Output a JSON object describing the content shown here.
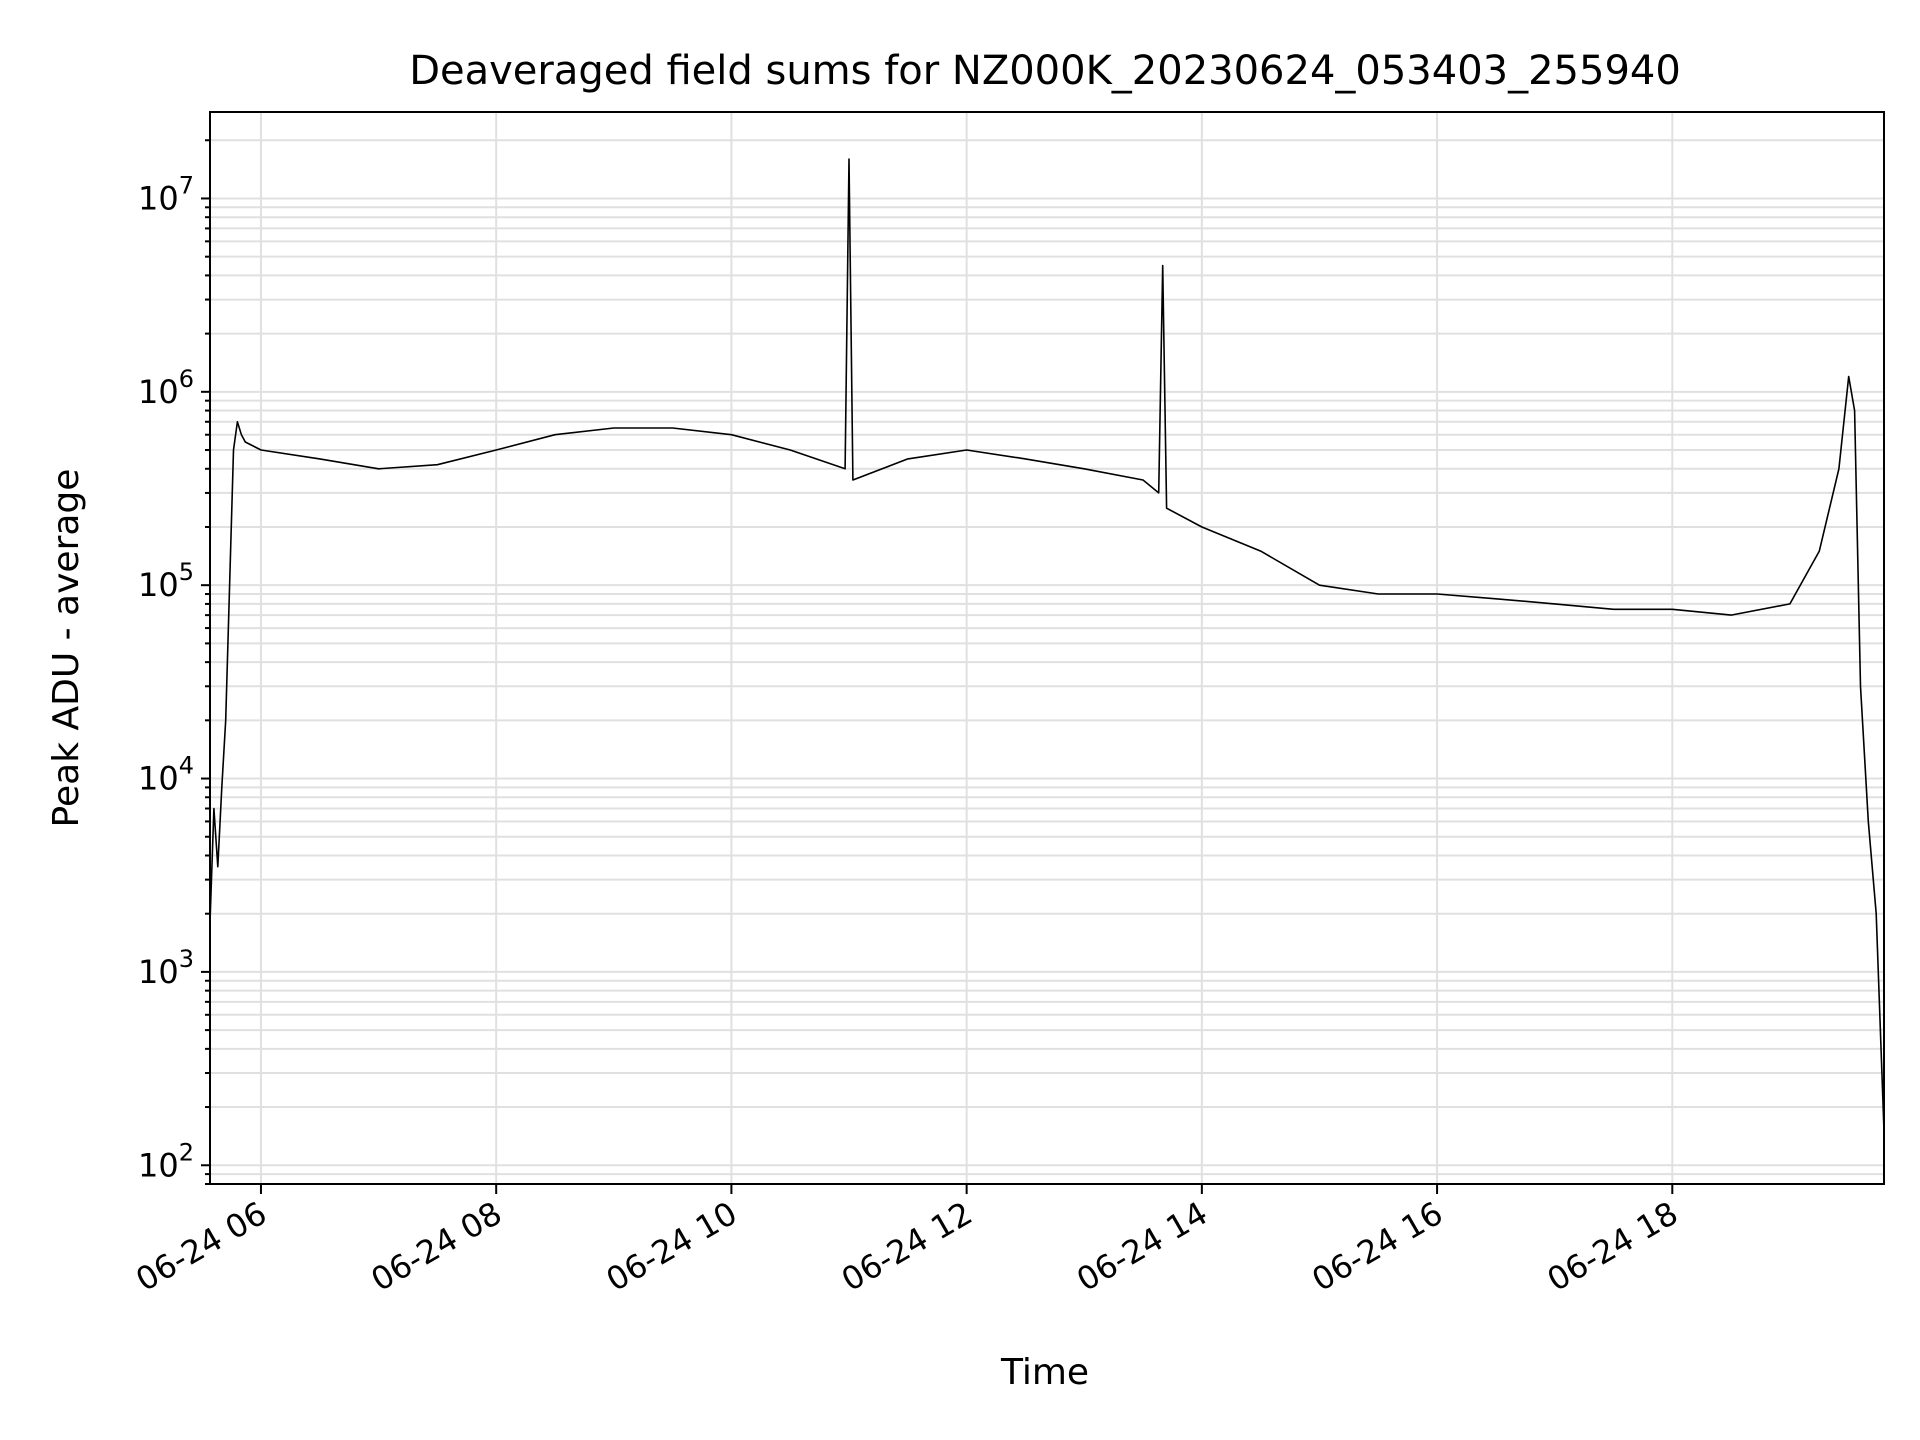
{
  "chart_data": {
    "type": "line",
    "title": "Deaveraged field sums for NZ000K_20230624_053403_255940",
    "xlabel": "Time",
    "ylabel": "Peak ADU - average",
    "x_scale": "time",
    "y_scale": "log",
    "xlim": [
      "2023-06-24 05:34",
      "2023-06-24 19:48"
    ],
    "ylim": [
      80,
      28000000
    ],
    "grid": true,
    "grid_minor": true,
    "line_color": "#000000",
    "grid_color": "#e0e0e0",
    "x_ticks": [
      {
        "value": "2023-06-24 06:00",
        "label": "06-24 06"
      },
      {
        "value": "2023-06-24 08:00",
        "label": "06-24 08"
      },
      {
        "value": "2023-06-24 10:00",
        "label": "06-24 10"
      },
      {
        "value": "2023-06-24 12:00",
        "label": "06-24 12"
      },
      {
        "value": "2023-06-24 14:00",
        "label": "06-24 14"
      },
      {
        "value": "2023-06-24 16:00",
        "label": "06-24 16"
      },
      {
        "value": "2023-06-24 18:00",
        "label": "06-24 18"
      }
    ],
    "y_ticks": [
      {
        "value": 100,
        "base": "10",
        "exp": "2"
      },
      {
        "value": 1000,
        "base": "10",
        "exp": "3"
      },
      {
        "value": 10000,
        "base": "10",
        "exp": "4"
      },
      {
        "value": 100000,
        "base": "10",
        "exp": "5"
      },
      {
        "value": 1000000,
        "base": "10",
        "exp": "6"
      },
      {
        "value": 10000000,
        "base": "10",
        "exp": "7"
      }
    ],
    "series": [
      {
        "x": [
          "2023-06-24 05:34",
          "2023-06-24 05:36",
          "2023-06-24 05:38",
          "2023-06-24 05:40",
          "2023-06-24 05:42",
          "2023-06-24 05:44",
          "2023-06-24 05:46",
          "2023-06-24 05:48",
          "2023-06-24 05:50",
          "2023-06-24 05:52",
          "2023-06-24 06:00",
          "2023-06-24 06:30",
          "2023-06-24 07:00",
          "2023-06-24 07:30",
          "2023-06-24 08:00",
          "2023-06-24 08:30",
          "2023-06-24 09:00",
          "2023-06-24 09:30",
          "2023-06-24 10:00",
          "2023-06-24 10:30",
          "2023-06-24 10:58",
          "2023-06-24 11:00",
          "2023-06-24 11:02",
          "2023-06-24 11:30",
          "2023-06-24 12:00",
          "2023-06-24 12:30",
          "2023-06-24 13:00",
          "2023-06-24 13:30",
          "2023-06-24 13:38",
          "2023-06-24 13:40",
          "2023-06-24 13:42",
          "2023-06-24 14:00",
          "2023-06-24 14:30",
          "2023-06-24 15:00",
          "2023-06-24 15:30",
          "2023-06-24 16:00",
          "2023-06-24 16:30",
          "2023-06-24 17:00",
          "2023-06-24 17:30",
          "2023-06-24 18:00",
          "2023-06-24 18:30",
          "2023-06-24 19:00",
          "2023-06-24 19:15",
          "2023-06-24 19:25",
          "2023-06-24 19:30",
          "2023-06-24 19:33",
          "2023-06-24 19:36",
          "2023-06-24 19:40",
          "2023-06-24 19:44",
          "2023-06-24 19:48"
        ],
        "values": [
          1800,
          7000,
          3500,
          9000,
          20000,
          100000,
          500000,
          700000,
          600000,
          550000,
          500000,
          450000,
          400000,
          420000,
          500000,
          600000,
          650000,
          650000,
          600000,
          500000,
          400000,
          16000000,
          350000,
          450000,
          500000,
          450000,
          400000,
          350000,
          300000,
          4500000,
          250000,
          200000,
          150000,
          100000,
          90000,
          90000,
          85000,
          80000,
          75000,
          75000,
          70000,
          80000,
          150000,
          400000,
          1200000,
          800000,
          30000,
          6000,
          2000,
          150
        ]
      }
    ]
  }
}
